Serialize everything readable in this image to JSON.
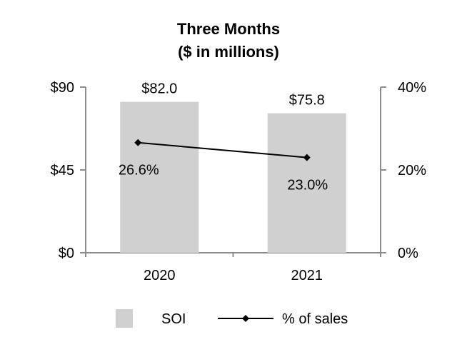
{
  "chart_data": {
    "type": "bar",
    "title": "Three Months",
    "subtitle": "($ in millions)",
    "categories": [
      "2020",
      "2021"
    ],
    "series": [
      {
        "name": "SOI",
        "kind": "bar",
        "axis": "left",
        "values": [
          82.0,
          75.8
        ],
        "labels": [
          "$82.0",
          "$75.8"
        ],
        "color": "#d0d0d0"
      },
      {
        "name": "% of sales",
        "kind": "line",
        "axis": "right",
        "values": [
          26.6,
          23.0
        ],
        "labels": [
          "26.6%",
          "23.0%"
        ],
        "color": "#000000"
      }
    ],
    "y_left": {
      "min": 0,
      "max": 90,
      "ticks": [
        0,
        45,
        90
      ],
      "tick_labels": [
        "$0",
        "$45",
        "$90"
      ]
    },
    "y_right": {
      "min": 0,
      "max": 40,
      "ticks": [
        0,
        20,
        40
      ],
      "tick_labels": [
        "0%",
        "20%",
        "40%"
      ]
    },
    "grid": false,
    "legend": {
      "position": "bottom",
      "entries": [
        "SOI",
        "% of sales"
      ]
    }
  }
}
